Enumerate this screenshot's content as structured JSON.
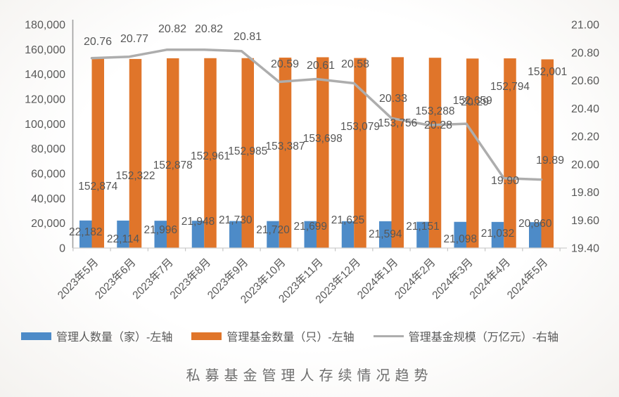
{
  "title": "私募基金管理人存续情况趋势",
  "chart_data": {
    "type": "combo",
    "categories": [
      "2023年5月",
      "2023年6月",
      "2023年7月",
      "2023年8月",
      "2023年9月",
      "2023年10月",
      "2023年11月",
      "2023年12月",
      "2024年1月",
      "2024年2月",
      "2024年3月",
      "2024年4月",
      "2024年5月"
    ],
    "series": [
      {
        "name": "管理人数量（家）-左轴",
        "type": "bar",
        "axis": "left",
        "color": "#4D8BC8",
        "values": [
          22182,
          22114,
          21996,
          21948,
          21730,
          21720,
          21699,
          21625,
          21594,
          21151,
          21098,
          21032,
          20860
        ]
      },
      {
        "name": "管理基金数量（只）-左轴",
        "type": "bar",
        "axis": "left",
        "color": "#E0752A",
        "values": [
          152874,
          152322,
          152878,
          152961,
          152985,
          153387,
          153698,
          153079,
          153756,
          153288,
          152659,
          152794,
          152001
        ]
      },
      {
        "name": "管理基金规模（万亿元）-右轴",
        "type": "line",
        "axis": "right",
        "color": "#ADADAD",
        "values": [
          20.76,
          20.77,
          20.82,
          20.82,
          20.81,
          20.59,
          20.61,
          20.58,
          20.33,
          20.28,
          20.29,
          19.9,
          19.89
        ]
      }
    ],
    "left_axis": {
      "min": 0,
      "max": 180000,
      "step": 20000,
      "tick_labels": [
        "0",
        "20,000",
        "40,000",
        "60,000",
        "80,000",
        "100,000",
        "120,000",
        "140,000",
        "160,000",
        "180,000"
      ]
    },
    "right_axis": {
      "min": 19.4,
      "max": 21.0,
      "step": 0.2,
      "tick_labels": [
        "19.40",
        "19.60",
        "19.80",
        "20.00",
        "20.20",
        "20.40",
        "20.60",
        "20.80",
        "21.00"
      ]
    },
    "legend_position": "bottom",
    "grid": false,
    "label_color": "#575757"
  }
}
